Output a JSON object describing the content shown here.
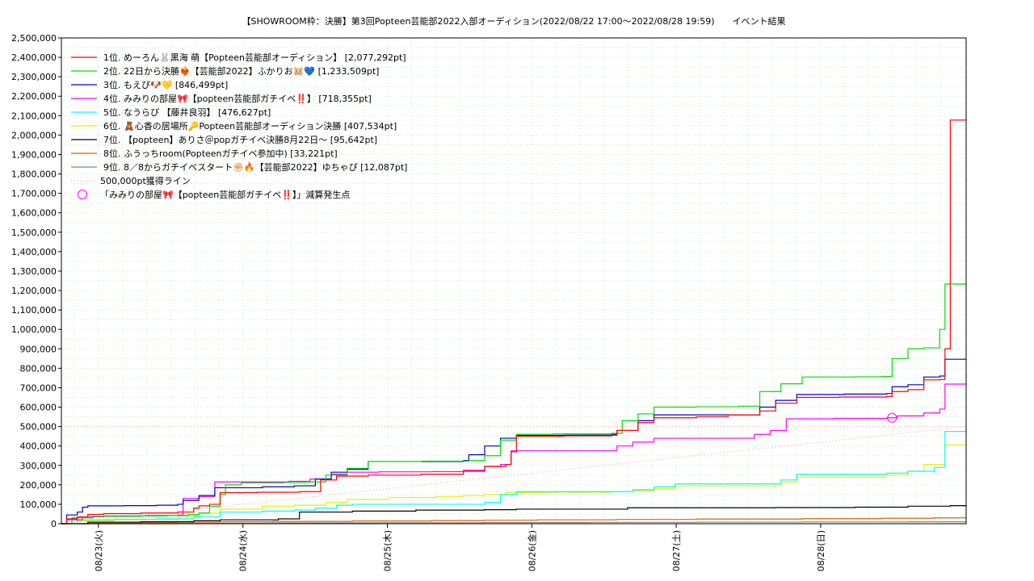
{
  "chart_data": {
    "type": "line",
    "title": "【SHOWROOM枠：決勝】第3回Popteen芸能部2022入部オーディション(2022/08/22 17:00～2022/08/28 19:59)　　イベント結果",
    "xlabel": "",
    "ylabel": "",
    "ylim": [
      0,
      2500000
    ],
    "yticks": [
      "0",
      "100,000",
      "200,000",
      "300,000",
      "400,000",
      "500,000",
      "600,000",
      "700,000",
      "800,000",
      "900,000",
      "1,000,000",
      "1,100,000",
      "1,200,000",
      "1,300,000",
      "1,400,000",
      "1,500,000",
      "1,600,000",
      "1,700,000",
      "1,800,000",
      "1,900,000",
      "2,000,000",
      "2,100,000",
      "2,200,000",
      "2,300,000",
      "2,400,000",
      "2,500,000"
    ],
    "xlim_hours": [
      0,
      171
    ],
    "xticks": [
      {
        "label": "08/23(火)",
        "hour": 7
      },
      {
        "label": "08/24(水)",
        "hour": 34.3
      },
      {
        "label": "08/25(木)",
        "hour": 61.6
      },
      {
        "label": "08/26(金)",
        "hour": 88.9
      },
      {
        "label": "08/27(土)",
        "hour": 116.2
      },
      {
        "label": "08/28(日)",
        "hour": 143.5
      }
    ],
    "grid": true,
    "legend_position": "top-left",
    "reference_line": {
      "name": "500,000pt獲得ライン",
      "value": 500000,
      "color": "#ff9999"
    },
    "marker": {
      "name": "「みみりの部屋🎀【popteen芸能部ガチイベ‼️】」減算発生点",
      "x_hour": 157,
      "y": 545000,
      "color": "#ff00ff"
    },
    "series": [
      {
        "name": "1位. めーろん🐰黒海 萌【Popteen芸能部オーディション】 [2,077,292pt]",
        "color": "#ff0000",
        "points": [
          [
            0,
            0
          ],
          [
            1,
            25000
          ],
          [
            3,
            35000
          ],
          [
            5,
            48000
          ],
          [
            8,
            52000
          ],
          [
            15,
            55000
          ],
          [
            22,
            60000
          ],
          [
            25,
            80000
          ],
          [
            26,
            92000
          ],
          [
            28,
            100000
          ],
          [
            30,
            160000
          ],
          [
            37,
            162000
          ],
          [
            45,
            165000
          ],
          [
            49,
            225000
          ],
          [
            52,
            245000
          ],
          [
            58,
            250000
          ],
          [
            68,
            255000
          ],
          [
            76,
            270000
          ],
          [
            80,
            295000
          ],
          [
            84,
            305000
          ],
          [
            85,
            370000
          ],
          [
            86,
            450000
          ],
          [
            95,
            452000
          ],
          [
            104,
            455000
          ],
          [
            105,
            480000
          ],
          [
            109,
            520000
          ],
          [
            112,
            545000
          ],
          [
            120,
            550000
          ],
          [
            126,
            560000
          ],
          [
            132,
            580000
          ],
          [
            135,
            620000
          ],
          [
            139,
            650000
          ],
          [
            147,
            652000
          ],
          [
            156,
            655000
          ],
          [
            157,
            680000
          ],
          [
            160,
            690000
          ],
          [
            163,
            740000
          ],
          [
            166,
            742000
          ],
          [
            167,
            900000
          ],
          [
            168,
            2077292
          ],
          [
            171,
            2077292
          ]
        ]
      },
      {
        "name": "2位. 22日から決勝❤️‍🔥【芸能部2022】ふかりお🐹💙 [1,233,509pt]",
        "color": "#00dd00",
        "points": [
          [
            0,
            0
          ],
          [
            2,
            30000
          ],
          [
            6,
            38000
          ],
          [
            15,
            40000
          ],
          [
            20,
            42000
          ],
          [
            24,
            48000
          ],
          [
            26,
            55000
          ],
          [
            28,
            90000
          ],
          [
            30,
            150000
          ],
          [
            31,
            200000
          ],
          [
            34,
            210000
          ],
          [
            42,
            212000
          ],
          [
            46,
            215000
          ],
          [
            50,
            250000
          ],
          [
            54,
            285000
          ],
          [
            58,
            320000
          ],
          [
            68,
            322000
          ],
          [
            77,
            325000
          ],
          [
            80,
            350000
          ],
          [
            83,
            430000
          ],
          [
            86,
            460000
          ],
          [
            93,
            462000
          ],
          [
            104,
            465000
          ],
          [
            106,
            530000
          ],
          [
            109,
            565000
          ],
          [
            112,
            600000
          ],
          [
            120,
            602000
          ],
          [
            128,
            605000
          ],
          [
            132,
            680000
          ],
          [
            136,
            720000
          ],
          [
            140,
            755000
          ],
          [
            150,
            756000
          ],
          [
            155,
            758000
          ],
          [
            157,
            850000
          ],
          [
            160,
            900000
          ],
          [
            163,
            905000
          ],
          [
            166,
            1000000
          ],
          [
            167,
            1233509
          ],
          [
            171,
            1233509
          ]
        ]
      },
      {
        "name": "3位. もえぴ🐶💛 [846,499pt]",
        "color": "#0000cc",
        "points": [
          [
            0,
            0
          ],
          [
            1,
            45000
          ],
          [
            3,
            60000
          ],
          [
            4,
            85000
          ],
          [
            5,
            92000
          ],
          [
            12,
            93000
          ],
          [
            18,
            95000
          ],
          [
            22,
            100000
          ],
          [
            23,
            120000
          ],
          [
            26,
            145000
          ],
          [
            29,
            185000
          ],
          [
            38,
            190000
          ],
          [
            44,
            195000
          ],
          [
            48,
            230000
          ],
          [
            51,
            265000
          ],
          [
            54,
            280000
          ],
          [
            58,
            320000
          ],
          [
            67,
            320000
          ],
          [
            76,
            325000
          ],
          [
            77,
            355000
          ],
          [
            80,
            400000
          ],
          [
            83,
            440000
          ],
          [
            86,
            455000
          ],
          [
            95,
            456000
          ],
          [
            104,
            460000
          ],
          [
            105,
            480000
          ],
          [
            109,
            530000
          ],
          [
            112,
            560000
          ],
          [
            120,
            560000
          ],
          [
            128,
            560000
          ],
          [
            132,
            600000
          ],
          [
            135,
            635000
          ],
          [
            139,
            665000
          ],
          [
            148,
            667000
          ],
          [
            156,
            670000
          ],
          [
            157,
            705000
          ],
          [
            160,
            715000
          ],
          [
            163,
            755000
          ],
          [
            166,
            760000
          ],
          [
            167,
            846499
          ],
          [
            171,
            846499
          ]
        ]
      },
      {
        "name": "4位. みみりの部屋🎀【popteen芸能部ガチイベ‼️】 [718,355pt]",
        "color": "#ff00ff",
        "points": [
          [
            0,
            0
          ],
          [
            1,
            20000
          ],
          [
            4,
            35000
          ],
          [
            8,
            40000
          ],
          [
            16,
            42000
          ],
          [
            22,
            45000
          ],
          [
            23,
            130000
          ],
          [
            26,
            140000
          ],
          [
            29,
            215000
          ],
          [
            35,
            215000
          ],
          [
            43,
            218000
          ],
          [
            47,
            230000
          ],
          [
            51,
            255000
          ],
          [
            54,
            265000
          ],
          [
            60,
            267000
          ],
          [
            70,
            268000
          ],
          [
            76,
            275000
          ],
          [
            80,
            295000
          ],
          [
            83,
            305000
          ],
          [
            85,
            375000
          ],
          [
            92,
            375000
          ],
          [
            104,
            375000
          ],
          [
            105,
            400000
          ],
          [
            108,
            420000
          ],
          [
            112,
            440000
          ],
          [
            120,
            440000
          ],
          [
            128,
            440000
          ],
          [
            131,
            460000
          ],
          [
            134,
            480000
          ],
          [
            137,
            540000
          ],
          [
            146,
            542000
          ],
          [
            156,
            545000
          ],
          [
            157,
            545000
          ],
          [
            158,
            555000
          ],
          [
            163,
            570000
          ],
          [
            166,
            590000
          ],
          [
            167,
            718355
          ],
          [
            171,
            718355
          ]
        ]
      },
      {
        "name": "5位. なうらぴ 【藤井良羽】 [476,627pt]",
        "color": "#00ffff",
        "points": [
          [
            0,
            0
          ],
          [
            3,
            20000
          ],
          [
            10,
            22000
          ],
          [
            18,
            25000
          ],
          [
            25,
            35000
          ],
          [
            30,
            60000
          ],
          [
            38,
            65000
          ],
          [
            44,
            70000
          ],
          [
            48,
            80000
          ],
          [
            52,
            95000
          ],
          [
            55,
            100000
          ],
          [
            65,
            100000
          ],
          [
            75,
            100000
          ],
          [
            80,
            110000
          ],
          [
            83,
            150000
          ],
          [
            86,
            165000
          ],
          [
            95,
            165000
          ],
          [
            104,
            165000
          ],
          [
            108,
            175000
          ],
          [
            112,
            190000
          ],
          [
            116,
            205000
          ],
          [
            125,
            205000
          ],
          [
            132,
            205000
          ],
          [
            136,
            225000
          ],
          [
            139,
            255000
          ],
          [
            148,
            255000
          ],
          [
            156,
            260000
          ],
          [
            160,
            270000
          ],
          [
            165,
            290000
          ],
          [
            167,
            475000
          ],
          [
            171,
            476627
          ]
        ]
      },
      {
        "name": "6位. 🧸心香の居場所🔑Popteen芸能部オーディション決勝 [407,534pt]",
        "color": "#eeee00",
        "points": [
          [
            0,
            0
          ],
          [
            3,
            15000
          ],
          [
            10,
            20000
          ],
          [
            16,
            22000
          ],
          [
            22,
            40000
          ],
          [
            26,
            55000
          ],
          [
            30,
            75000
          ],
          [
            38,
            90000
          ],
          [
            44,
            95000
          ],
          [
            50,
            110000
          ],
          [
            54,
            125000
          ],
          [
            62,
            135000
          ],
          [
            71,
            140000
          ],
          [
            76,
            145000
          ],
          [
            80,
            150000
          ],
          [
            84,
            160000
          ],
          [
            92,
            162000
          ],
          [
            104,
            165000
          ],
          [
            108,
            170000
          ],
          [
            112,
            180000
          ],
          [
            116,
            195000
          ],
          [
            124,
            195000
          ],
          [
            132,
            195000
          ],
          [
            136,
            215000
          ],
          [
            139,
            240000
          ],
          [
            148,
            240000
          ],
          [
            156,
            250000
          ],
          [
            160,
            270000
          ],
          [
            163,
            305000
          ],
          [
            167,
            405000
          ],
          [
            171,
            407534
          ]
        ]
      },
      {
        "name": "7位. 【popteen】ありさ＠popガチイベ決勝8月22日〜 [95,642pt]",
        "color": "#000000",
        "points": [
          [
            0,
            0
          ],
          [
            5,
            8000
          ],
          [
            15,
            10000
          ],
          [
            25,
            15000
          ],
          [
            30,
            20000
          ],
          [
            41,
            25000
          ],
          [
            45,
            60000
          ],
          [
            55,
            65000
          ],
          [
            67,
            70000
          ],
          [
            80,
            72000
          ],
          [
            86,
            75000
          ],
          [
            97,
            75000
          ],
          [
            107,
            82000
          ],
          [
            120,
            82000
          ],
          [
            135,
            83000
          ],
          [
            150,
            85000
          ],
          [
            160,
            90000
          ],
          [
            168,
            93000
          ],
          [
            171,
            95642
          ]
        ]
      },
      {
        "name": "8位. ふうっちroom(Popteenガチイベ参加中) [33,221pt]",
        "color": "#e06000",
        "points": [
          [
            0,
            0
          ],
          [
            5,
            3000
          ],
          [
            15,
            5000
          ],
          [
            22,
            8000
          ],
          [
            30,
            10000
          ],
          [
            40,
            12000
          ],
          [
            55,
            14000
          ],
          [
            70,
            16000
          ],
          [
            80,
            18000
          ],
          [
            90,
            20000
          ],
          [
            105,
            22000
          ],
          [
            120,
            24000
          ],
          [
            140,
            26000
          ],
          [
            155,
            28000
          ],
          [
            165,
            30000
          ],
          [
            171,
            33221
          ]
        ]
      },
      {
        "name": "9位. 8／8からガチイベスタート✊🏻🔥【芸能部2022】ゆちゃぴ [12,087pt]",
        "color": "#888888",
        "points": [
          [
            0,
            0
          ],
          [
            20,
            2000
          ],
          [
            40,
            4000
          ],
          [
            60,
            5000
          ],
          [
            80,
            6000
          ],
          [
            100,
            7000
          ],
          [
            120,
            8000
          ],
          [
            140,
            9000
          ],
          [
            160,
            10000
          ],
          [
            171,
            12087
          ]
        ]
      }
    ]
  }
}
